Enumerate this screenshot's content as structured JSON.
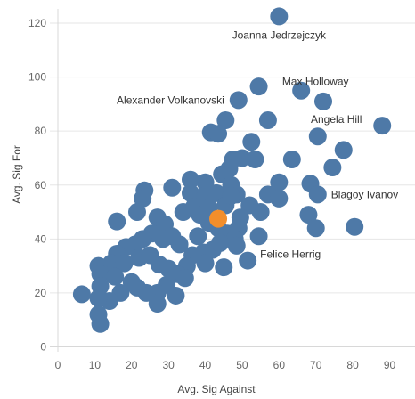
{
  "chart_data": {
    "type": "scatter",
    "title": "",
    "xlabel": "Avg. Sig Against",
    "ylabel": "Avg. Sig For",
    "xlim": [
      0,
      90
    ],
    "ylim": [
      0,
      120
    ],
    "xticks": [
      0,
      10,
      20,
      30,
      40,
      50,
      60,
      70,
      80,
      90
    ],
    "yticks": [
      0,
      20,
      40,
      60,
      80,
      100,
      120
    ],
    "grid": true,
    "colors": {
      "default": "#4e79a7",
      "highlight": "#f28e2b"
    },
    "highlight_point": {
      "x": 43.5,
      "y": 47.5
    },
    "annotations": [
      {
        "text": "Joanna Jedrzejczyk",
        "x": 60,
        "y": 122.5
      },
      {
        "text": "Max Holloway",
        "x": 66,
        "y": 95
      },
      {
        "text": "Alexander Volkanovski",
        "x": 49,
        "y": 91.5
      },
      {
        "text": "Angela Hill",
        "x": 72,
        "y": 91
      },
      {
        "text": "Blagoy Ivanov",
        "x": 70.5,
        "y": 56.5
      },
      {
        "text": "Felice Herrig",
        "x": 51.5,
        "y": 32
      }
    ],
    "points": [
      {
        "x": 60,
        "y": 122.5
      },
      {
        "x": 66,
        "y": 95
      },
      {
        "x": 72,
        "y": 91
      },
      {
        "x": 54.5,
        "y": 96.5
      },
      {
        "x": 49,
        "y": 91.5
      },
      {
        "x": 88,
        "y": 82
      },
      {
        "x": 70.5,
        "y": 78
      },
      {
        "x": 57,
        "y": 84
      },
      {
        "x": 45.5,
        "y": 84
      },
      {
        "x": 41.5,
        "y": 79.5
      },
      {
        "x": 43.5,
        "y": 79
      },
      {
        "x": 52.5,
        "y": 76
      },
      {
        "x": 77.5,
        "y": 73
      },
      {
        "x": 74.5,
        "y": 66.5
      },
      {
        "x": 63.5,
        "y": 69.5
      },
      {
        "x": 53.5,
        "y": 69.5
      },
      {
        "x": 50,
        "y": 70
      },
      {
        "x": 47.5,
        "y": 69.5
      },
      {
        "x": 46.5,
        "y": 66
      },
      {
        "x": 44.5,
        "y": 64
      },
      {
        "x": 47,
        "y": 60
      },
      {
        "x": 48.5,
        "y": 56.5
      },
      {
        "x": 40,
        "y": 61
      },
      {
        "x": 36,
        "y": 62
      },
      {
        "x": 31,
        "y": 59
      },
      {
        "x": 23.5,
        "y": 58
      },
      {
        "x": 23,
        "y": 55
      },
      {
        "x": 36,
        "y": 57
      },
      {
        "x": 40,
        "y": 56
      },
      {
        "x": 43,
        "y": 57
      },
      {
        "x": 60,
        "y": 61
      },
      {
        "x": 68.5,
        "y": 60.5
      },
      {
        "x": 70.5,
        "y": 56.5
      },
      {
        "x": 57,
        "y": 56.5
      },
      {
        "x": 52,
        "y": 52.5
      },
      {
        "x": 55,
        "y": 50
      },
      {
        "x": 60,
        "y": 55
      },
      {
        "x": 68,
        "y": 49
      },
      {
        "x": 70,
        "y": 44
      },
      {
        "x": 80.5,
        "y": 44.5
      },
      {
        "x": 21.5,
        "y": 50
      },
      {
        "x": 16,
        "y": 46.5
      },
      {
        "x": 27,
        "y": 48
      },
      {
        "x": 29,
        "y": 45.5
      },
      {
        "x": 34,
        "y": 50
      },
      {
        "x": 37,
        "y": 52
      },
      {
        "x": 38.5,
        "y": 49
      },
      {
        "x": 41,
        "y": 46
      },
      {
        "x": 43.5,
        "y": 44
      },
      {
        "x": 46,
        "y": 42
      },
      {
        "x": 49.5,
        "y": 48
      },
      {
        "x": 49,
        "y": 44
      },
      {
        "x": 48,
        "y": 40
      },
      {
        "x": 48.5,
        "y": 37.5
      },
      {
        "x": 54.5,
        "y": 41
      },
      {
        "x": 51.5,
        "y": 32
      },
      {
        "x": 45,
        "y": 29.5
      },
      {
        "x": 42,
        "y": 36
      },
      {
        "x": 39.5,
        "y": 35
      },
      {
        "x": 40,
        "y": 31
      },
      {
        "x": 36.5,
        "y": 34
      },
      {
        "x": 35,
        "y": 30
      },
      {
        "x": 33,
        "y": 38
      },
      {
        "x": 31,
        "y": 41
      },
      {
        "x": 28.5,
        "y": 40
      },
      {
        "x": 25.5,
        "y": 42
      },
      {
        "x": 23,
        "y": 40
      },
      {
        "x": 21,
        "y": 38
      },
      {
        "x": 18.5,
        "y": 37
      },
      {
        "x": 16,
        "y": 34.5
      },
      {
        "x": 14.5,
        "y": 31
      },
      {
        "x": 18,
        "y": 31
      },
      {
        "x": 22,
        "y": 33
      },
      {
        "x": 25,
        "y": 34
      },
      {
        "x": 27.5,
        "y": 30.5
      },
      {
        "x": 30,
        "y": 29
      },
      {
        "x": 32.5,
        "y": 27
      },
      {
        "x": 34.5,
        "y": 25.5
      },
      {
        "x": 29.5,
        "y": 23
      },
      {
        "x": 27,
        "y": 20
      },
      {
        "x": 27,
        "y": 16
      },
      {
        "x": 32,
        "y": 19
      },
      {
        "x": 24,
        "y": 20
      },
      {
        "x": 21.5,
        "y": 22
      },
      {
        "x": 20,
        "y": 24
      },
      {
        "x": 17,
        "y": 20
      },
      {
        "x": 14,
        "y": 17
      },
      {
        "x": 11,
        "y": 30
      },
      {
        "x": 11.5,
        "y": 27
      },
      {
        "x": 11.5,
        "y": 22.5
      },
      {
        "x": 11,
        "y": 18
      },
      {
        "x": 11,
        "y": 12
      },
      {
        "x": 11.5,
        "y": 8.5
      },
      {
        "x": 6.5,
        "y": 19.5
      },
      {
        "x": 15.5,
        "y": 26
      },
      {
        "x": 38,
        "y": 41
      },
      {
        "x": 44,
        "y": 38.5
      },
      {
        "x": 45.5,
        "y": 52.5
      },
      {
        "x": 47,
        "y": 56
      },
      {
        "x": 41,
        "y": 51.5
      }
    ]
  }
}
